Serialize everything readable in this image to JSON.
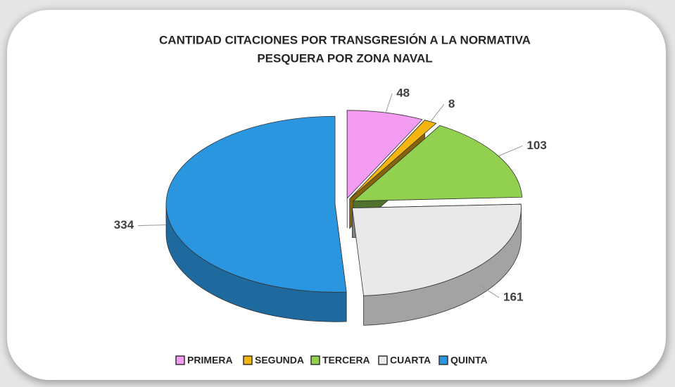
{
  "chart_data": {
    "type": "pie3d",
    "title": [
      "CANTIDAD CITACIONES POR TRANSGRESIÓN A LA NORMATIVA",
      "PESQUERA POR ZONA NAVAL"
    ],
    "categories": [
      "PRIMERA",
      "SEGUNDA",
      "TERCERA",
      "CUARTA",
      "QUINTA"
    ],
    "values": [
      48,
      8,
      103,
      161,
      334
    ],
    "colors": [
      "#f49cf2",
      "#f5b50f",
      "#92d050",
      "#e9e9e9",
      "#2b96e0"
    ],
    "legend": "bottom"
  }
}
